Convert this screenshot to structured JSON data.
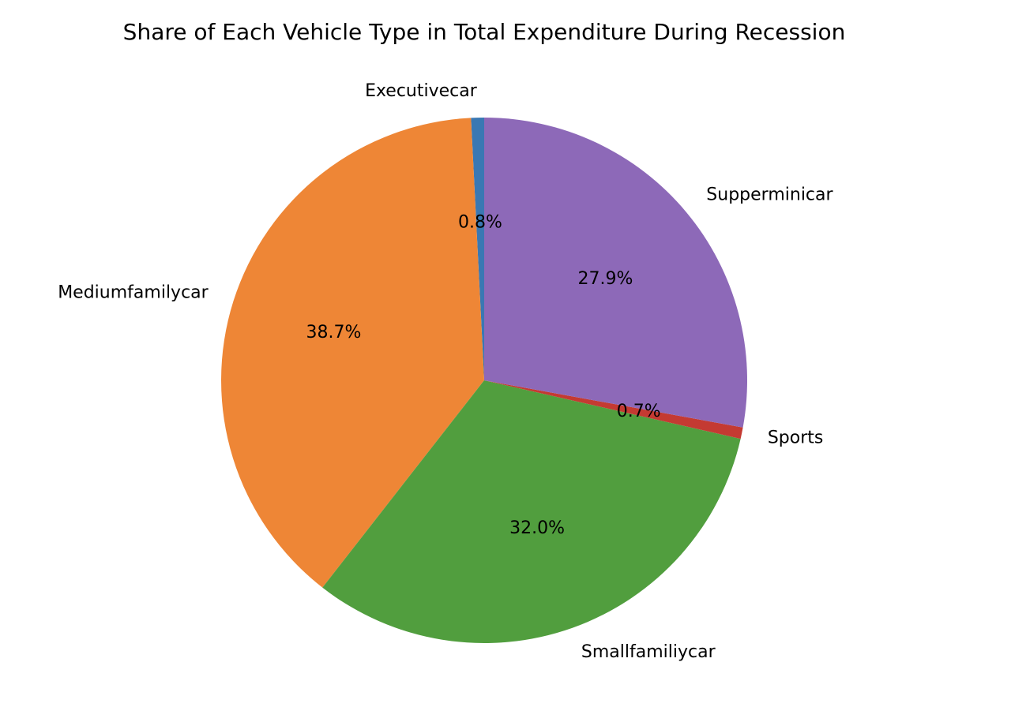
{
  "chart_data": {
    "type": "pie",
    "title": "Share of Each Vehicle Type in Total Expenditure During Recession",
    "start_angle_deg": 90,
    "direction": "counterclockwise",
    "slices": [
      {
        "label": "Executivecar",
        "value": 0.8,
        "pct_label": "0.8%",
        "color": "#3a78b3"
      },
      {
        "label": "Mediumfamilycar",
        "value": 38.7,
        "pct_label": "38.7%",
        "color": "#ee8636"
      },
      {
        "label": "Smallfamiliycar",
        "value": 32.0,
        "pct_label": "32.0%",
        "color": "#519e3e"
      },
      {
        "label": "Sports",
        "value": 0.7,
        "pct_label": "0.7%",
        "color": "#c43a32"
      },
      {
        "label": "Supperminicar",
        "value": 27.9,
        "pct_label": "27.9%",
        "color": "#8d69b8"
      }
    ]
  }
}
